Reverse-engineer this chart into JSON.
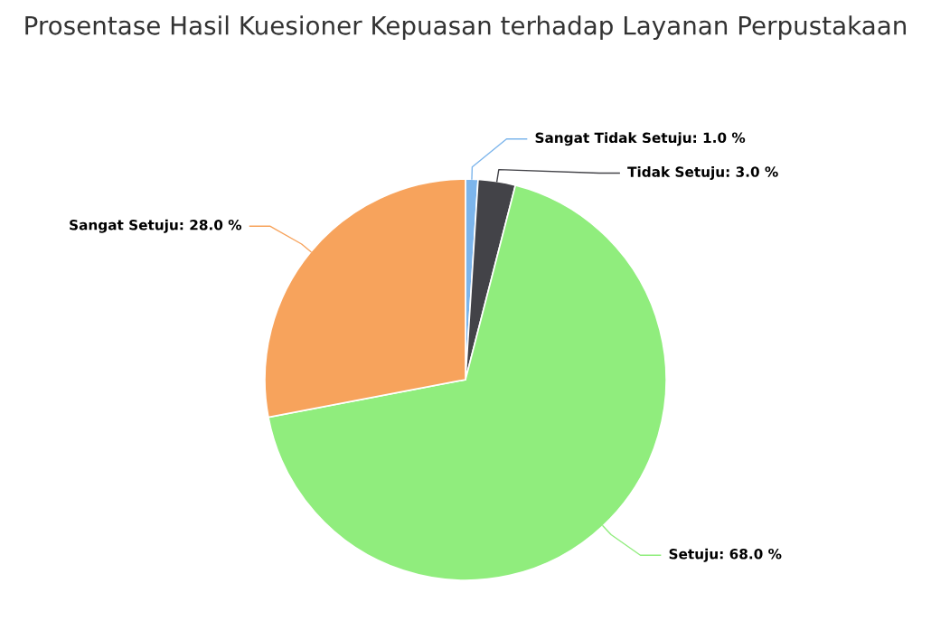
{
  "chart_data": {
    "type": "pie",
    "title": "Prosentase Hasil Kuesioner Kepuasan terhadap Layanan Perpustakaan",
    "categories": [
      "Sangat Tidak Setuju",
      "Tidak Setuju",
      "Setuju",
      "Sangat Setuju"
    ],
    "values": [
      1.0,
      3.0,
      68.0,
      28.0
    ],
    "value_labels": [
      "1.0 %",
      "3.0 %",
      "68.0 %",
      "28.0 %"
    ],
    "colors": [
      "#7cb5ec",
      "#434348",
      "#90ed7d",
      "#f7a35c"
    ]
  }
}
